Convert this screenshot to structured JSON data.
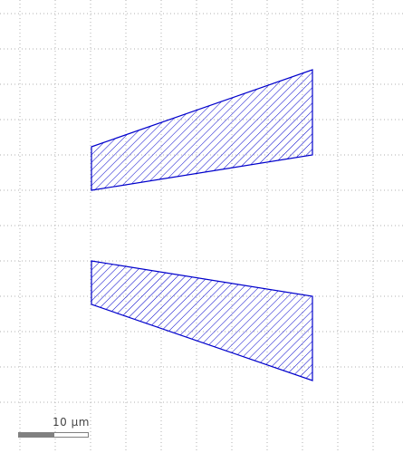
{
  "viewer": {
    "grid_visible": true,
    "grid_color": "#b0b0b0"
  },
  "layout_shapes": [
    {
      "name": "upper-trapezoid",
      "fill_pattern": "diagonal-hatch",
      "color": "#0000cc"
    },
    {
      "name": "lower-trapezoid",
      "fill_pattern": "diagonal-hatch",
      "color": "#0000cc"
    }
  ],
  "scale_bar": {
    "label": "10 µm",
    "filled_color": "#808080"
  }
}
